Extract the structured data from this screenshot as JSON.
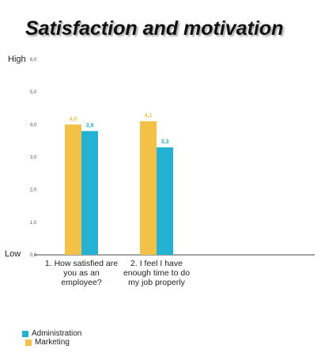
{
  "chart_data": {
    "type": "bar",
    "title": "Satisfaction and motivation",
    "categories": [
      [
        "1. How satisfied are",
        "you as an",
        "employee?"
      ],
      [
        "2. I feel I have",
        "enough time to do",
        "my job properly"
      ]
    ],
    "series": [
      {
        "name": "Marketing",
        "color": "#f2c145",
        "values": [
          4.0,
          4.1
        ],
        "labels": [
          "4,0",
          "4,1"
        ]
      },
      {
        "name": "Administration",
        "color": "#23b2d4",
        "values": [
          3.8,
          3.3
        ],
        "labels": [
          "3,8",
          "3,3"
        ]
      }
    ],
    "ylim": [
      0,
      6
    ],
    "yticks": [
      "0,0",
      "1,0",
      "2,0",
      "3,0",
      "4,0",
      "5,0",
      "6,0"
    ],
    "y_level_labels": {
      "high": "High",
      "low": "Low"
    },
    "grid": false,
    "legend": {
      "placement": "bottom-left",
      "items": [
        {
          "name": "Administration",
          "color": "#23b2d4"
        },
        {
          "name": "Marketing",
          "color": "#f2c145"
        }
      ]
    }
  }
}
